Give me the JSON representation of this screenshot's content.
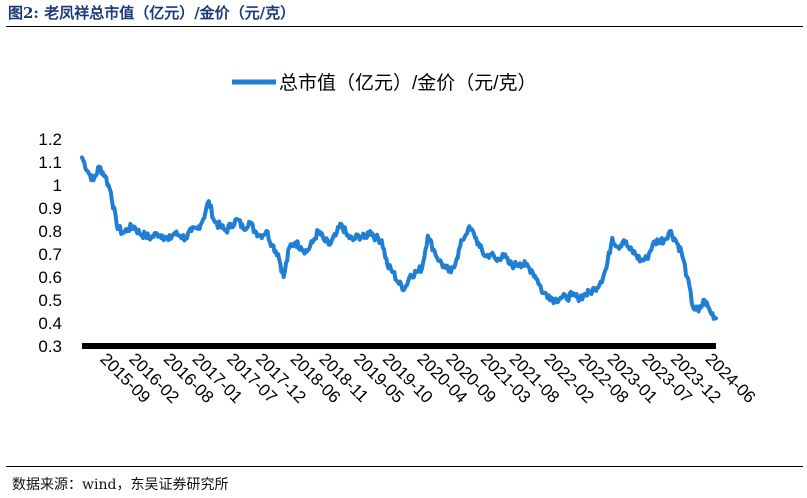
{
  "figure": {
    "caption": "图2:  老凤祥总市值（亿元）/金价（元/克）",
    "source": "数据来源：wind，东吴证券研究所"
  },
  "chart_data": {
    "type": "line",
    "title": "",
    "xlabel": "",
    "ylabel": "",
    "ylim": [
      0.3,
      1.2
    ],
    "yticks": [
      "1.2",
      "1.1",
      "1",
      "0.9",
      "0.8",
      "0.7",
      "0.6",
      "0.5",
      "0.4",
      "0.3"
    ],
    "ytick_values": [
      1.2,
      1.1,
      1.0,
      0.9,
      0.8,
      0.7,
      0.6,
      0.5,
      0.4,
      0.3
    ],
    "xlim": [
      "2015-06",
      "2024-08"
    ],
    "xticks": [
      "2015-09",
      "2016-02",
      "2016-08",
      "2017-01",
      "2017-07",
      "2017-12",
      "2018-06",
      "2018-11",
      "2019-05",
      "2019-10",
      "2020-04",
      "2020-09",
      "2021-03",
      "2021-08",
      "2022-02",
      "2022-08",
      "2023-01",
      "2023-07",
      "2023-12",
      "2024-06"
    ],
    "legend": {
      "position": "top-center"
    },
    "grid": false,
    "color": "#1f7fd4",
    "series": [
      {
        "name": "总市值（亿元）/金价（元/克）",
        "x": [
          "2015-06",
          "2015-07",
          "2015-08",
          "2015-09",
          "2015-10",
          "2015-11",
          "2015-12",
          "2016-01",
          "2016-02",
          "2016-03",
          "2016-04",
          "2016-05",
          "2016-06",
          "2016-07",
          "2016-08",
          "2016-09",
          "2016-10",
          "2016-11",
          "2016-12",
          "2017-01",
          "2017-02",
          "2017-03",
          "2017-04",
          "2017-05",
          "2017-06",
          "2017-07",
          "2017-08",
          "2017-09",
          "2017-10",
          "2017-11",
          "2017-12",
          "2018-01",
          "2018-02",
          "2018-03",
          "2018-04",
          "2018-05",
          "2018-06",
          "2018-07",
          "2018-08",
          "2018-09",
          "2018-10",
          "2018-11",
          "2018-12",
          "2019-01",
          "2019-02",
          "2019-03",
          "2019-04",
          "2019-05",
          "2019-06",
          "2019-07",
          "2019-08",
          "2019-09",
          "2019-10",
          "2019-11",
          "2019-12",
          "2020-01",
          "2020-02",
          "2020-03",
          "2020-04",
          "2020-05",
          "2020-06",
          "2020-07",
          "2020-08",
          "2020-09",
          "2020-10",
          "2020-11",
          "2020-12",
          "2021-01",
          "2021-02",
          "2021-03",
          "2021-04",
          "2021-05",
          "2021-06",
          "2021-07",
          "2021-08",
          "2021-09",
          "2021-10",
          "2021-11",
          "2021-12",
          "2022-01",
          "2022-02",
          "2022-03",
          "2022-04",
          "2022-05",
          "2022-06",
          "2022-07",
          "2022-08",
          "2022-09",
          "2022-10",
          "2022-11",
          "2022-12",
          "2023-01",
          "2023-02",
          "2023-03",
          "2023-04",
          "2023-05",
          "2023-06",
          "2023-07",
          "2023-08",
          "2023-09",
          "2023-10",
          "2023-11",
          "2023-12",
          "2024-01",
          "2024-02",
          "2024-03",
          "2024-04",
          "2024-05",
          "2024-06",
          "2024-07",
          "2024-08"
        ],
        "values": [
          1.12,
          1.06,
          1.02,
          1.08,
          1.04,
          0.97,
          0.83,
          0.79,
          0.81,
          0.82,
          0.79,
          0.78,
          0.77,
          0.79,
          0.78,
          0.76,
          0.79,
          0.78,
          0.77,
          0.8,
          0.81,
          0.85,
          0.93,
          0.84,
          0.82,
          0.8,
          0.83,
          0.85,
          0.81,
          0.84,
          0.8,
          0.78,
          0.8,
          0.74,
          0.7,
          0.6,
          0.73,
          0.75,
          0.73,
          0.71,
          0.75,
          0.8,
          0.76,
          0.74,
          0.78,
          0.83,
          0.78,
          0.76,
          0.78,
          0.77,
          0.8,
          0.77,
          0.76,
          0.65,
          0.62,
          0.57,
          0.55,
          0.61,
          0.62,
          0.64,
          0.78,
          0.72,
          0.67,
          0.64,
          0.62,
          0.68,
          0.76,
          0.81,
          0.79,
          0.73,
          0.69,
          0.7,
          0.67,
          0.7,
          0.66,
          0.65,
          0.66,
          0.65,
          0.63,
          0.59,
          0.53,
          0.52,
          0.5,
          0.51,
          0.51,
          0.52,
          0.51,
          0.52,
          0.53,
          0.55,
          0.58,
          0.64,
          0.77,
          0.73,
          0.76,
          0.72,
          0.7,
          0.67,
          0.68,
          0.74,
          0.76,
          0.76,
          0.8,
          0.76,
          0.71,
          0.6,
          0.47,
          0.45,
          0.5,
          0.45,
          0.42
        ]
      }
    ]
  }
}
